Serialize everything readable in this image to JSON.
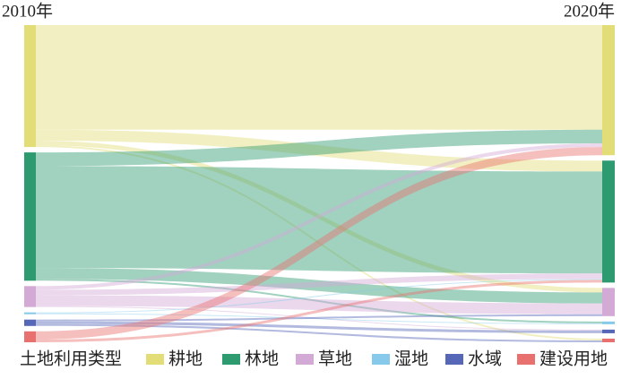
{
  "chart_data": {
    "type": "sankey",
    "left_label": "2010年",
    "right_label": "2020年",
    "legend_title": "土地利用类型",
    "nodes": [
      {
        "name": "耕地",
        "color": "#e3dd77"
      },
      {
        "name": "林地",
        "color": "#2e9a70"
      },
      {
        "name": "草地",
        "color": "#d3a9d6"
      },
      {
        "name": "湿地",
        "color": "#86c9ea"
      },
      {
        "name": "水域",
        "color": "#5667b8"
      },
      {
        "name": "建设用地",
        "color": "#e8706e"
      }
    ],
    "links": [
      {
        "source": 0,
        "target": 0,
        "value": 115
      },
      {
        "source": 0,
        "target": 1,
        "value": 12
      },
      {
        "source": 0,
        "target": 2,
        "value": 5
      },
      {
        "source": 0,
        "target": 5,
        "value": 2
      },
      {
        "source": 1,
        "target": 0,
        "value": 15
      },
      {
        "source": 1,
        "target": 1,
        "value": 112
      },
      {
        "source": 1,
        "target": 2,
        "value": 12
      },
      {
        "source": 1,
        "target": 3,
        "value": 2
      },
      {
        "source": 2,
        "target": 0,
        "value": 4
      },
      {
        "source": 2,
        "target": 1,
        "value": 6
      },
      {
        "source": 2,
        "target": 2,
        "value": 12
      },
      {
        "source": 2,
        "target": 4,
        "value": 1
      },
      {
        "source": 3,
        "target": 1,
        "value": 1
      },
      {
        "source": 3,
        "target": 3,
        "value": 1
      },
      {
        "source": 4,
        "target": 2,
        "value": 2
      },
      {
        "source": 4,
        "target": 4,
        "value": 3
      },
      {
        "source": 4,
        "target": 5,
        "value": 2
      },
      {
        "source": 5,
        "target": 0,
        "value": 9
      },
      {
        "source": 5,
        "target": 1,
        "value": 3
      }
    ]
  }
}
